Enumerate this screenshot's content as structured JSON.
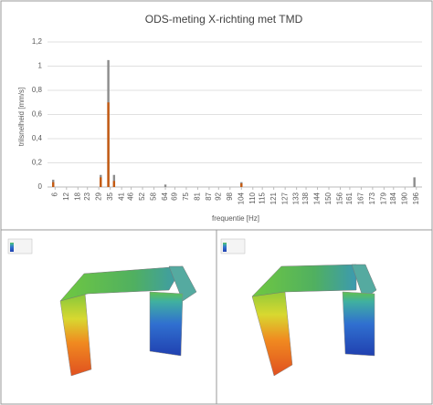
{
  "chart_data": {
    "type": "bar",
    "title": "ODS-meting X-richting met TMD",
    "y_label": "trilsnelheid [mm/s]",
    "x_label": "frequentie [Hz]",
    "xlim": [
      2,
      199
    ],
    "xticks": [
      6,
      12,
      18,
      23,
      29,
      35,
      41,
      46,
      52,
      58,
      64,
      69,
      75,
      81,
      87,
      92,
      98,
      104,
      110,
      115,
      121,
      127,
      133,
      138,
      144,
      150,
      156,
      161,
      167,
      173,
      179,
      184,
      190,
      196
    ],
    "ylim": [
      0,
      1.2
    ],
    "yticks": [
      0,
      {
        "value": 0.2,
        "label": "0,2"
      },
      {
        "value": 0.4,
        "label": "0,4"
      },
      {
        "value": 0.6,
        "label": "0,6"
      },
      {
        "value": 0.8,
        "label": "0,8"
      },
      1,
      {
        "value": 1.2,
        "label": "1,2"
      }
    ],
    "grid": true,
    "series": [
      {
        "color": "#8c8c8c",
        "x": [
          5,
          30,
          34,
          37,
          64,
          104,
          195
        ],
        "values": [
          0.06,
          0.1,
          1.05,
          0.1,
          0.02,
          0.04,
          0.08
        ]
      },
      {
        "color": "#c55a11",
        "x": [
          5,
          30,
          34,
          37,
          104
        ],
        "values": [
          0.04,
          0.08,
          0.7,
          0.05,
          0.03
        ]
      }
    ]
  }
}
